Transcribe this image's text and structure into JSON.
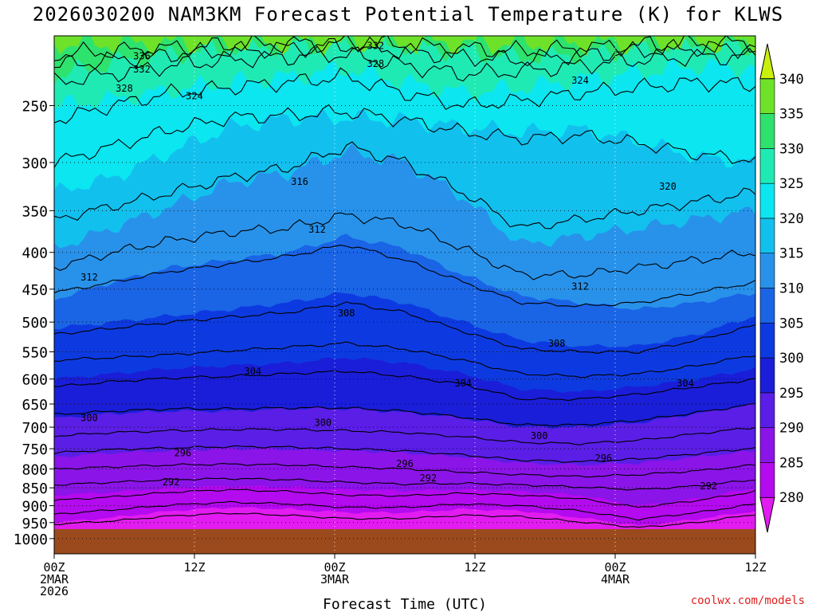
{
  "title": "2026030200 NAM3KM Forecast Potential Temperature (K) for KLWS",
  "watermark": "coolwx.com/models",
  "chart_data": {
    "type": "contour-filled time-height cross section",
    "title": "2026030200 NAM3KM Forecast Potential Temperature (K) for KLWS",
    "xlabel": "Forecast Time (UTC)",
    "ylabel": "",
    "x_ticks": [
      {
        "hour": 0,
        "lines": [
          "00Z",
          "2MAR",
          "2026"
        ]
      },
      {
        "hour": 12,
        "lines": [
          "12Z"
        ]
      },
      {
        "hour": 24,
        "lines": [
          "00Z",
          "3MAR"
        ]
      },
      {
        "hour": 36,
        "lines": [
          "12Z"
        ]
      },
      {
        "hour": 48,
        "lines": [
          "00Z",
          "4MAR"
        ]
      },
      {
        "hour": 60,
        "lines": [
          "12Z"
        ]
      }
    ],
    "xlim": [
      0,
      60
    ],
    "y_ticks": [
      250,
      300,
      350,
      400,
      450,
      500,
      550,
      600,
      650,
      700,
      750,
      800,
      850,
      900,
      950,
      1000
    ],
    "ylim": [
      200,
      1050
    ],
    "y_scale": "log-pressure",
    "ground_pressure": 970,
    "grid": true,
    "colorbar": {
      "labels": [
        340,
        335,
        330,
        325,
        320,
        315,
        310,
        305,
        300,
        295,
        290,
        285,
        280
      ],
      "levels": [
        {
          "min": 275,
          "max": 280,
          "color": "#e21cf0"
        },
        {
          "min": 280,
          "max": 285,
          "color": "#b40aef"
        },
        {
          "min": 285,
          "max": 290,
          "color": "#8b14e8"
        },
        {
          "min": 290,
          "max": 295,
          "color": "#5a1ee6"
        },
        {
          "min": 295,
          "max": 300,
          "color": "#1a1ed8"
        },
        {
          "min": 300,
          "max": 305,
          "color": "#0d3ae0"
        },
        {
          "min": 305,
          "max": 310,
          "color": "#1a64e6"
        },
        {
          "min": 310,
          "max": 315,
          "color": "#2892ea"
        },
        {
          "min": 315,
          "max": 320,
          "color": "#12c0ee"
        },
        {
          "min": 320,
          "max": 325,
          "color": "#0be6f0"
        },
        {
          "min": 325,
          "max": 330,
          "color": "#20eab4"
        },
        {
          "min": 330,
          "max": 335,
          "color": "#2ee26e"
        },
        {
          "min": 335,
          "max": 340,
          "color": "#6ee228"
        },
        {
          "min": 340,
          "max": 345,
          "color": "#c8f00c"
        }
      ]
    },
    "isentrope_labels": [
      {
        "value": 336,
        "hour": 7.5,
        "p": 213
      },
      {
        "value": 332,
        "hour": 7.5,
        "p": 222
      },
      {
        "value": 328,
        "hour": 6,
        "p": 236
      },
      {
        "value": 324,
        "hour": 12,
        "p": 242
      },
      {
        "value": 332,
        "hour": 27.5,
        "p": 206
      },
      {
        "value": 328,
        "hour": 27.5,
        "p": 218
      },
      {
        "value": 324,
        "hour": 45,
        "p": 230
      },
      {
        "value": 320,
        "hour": 52.5,
        "p": 323
      },
      {
        "value": 316,
        "hour": 21,
        "p": 318
      },
      {
        "value": 312,
        "hour": 22.5,
        "p": 371
      },
      {
        "value": 312,
        "hour": 3,
        "p": 432
      },
      {
        "value": 312,
        "hour": 45,
        "p": 445
      },
      {
        "value": 308,
        "hour": 25,
        "p": 485
      },
      {
        "value": 308,
        "hour": 43,
        "p": 534
      },
      {
        "value": 304,
        "hour": 17,
        "p": 584
      },
      {
        "value": 304,
        "hour": 35,
        "p": 607
      },
      {
        "value": 304,
        "hour": 54,
        "p": 607
      },
      {
        "value": 300,
        "hour": 3,
        "p": 678
      },
      {
        "value": 300,
        "hour": 23,
        "p": 688
      },
      {
        "value": 300,
        "hour": 41.5,
        "p": 718
      },
      {
        "value": 296,
        "hour": 11,
        "p": 758
      },
      {
        "value": 296,
        "hour": 30,
        "p": 785
      },
      {
        "value": 296,
        "hour": 47,
        "p": 771
      },
      {
        "value": 292,
        "hour": 10,
        "p": 832
      },
      {
        "value": 292,
        "hour": 32,
        "p": 822
      },
      {
        "value": 292,
        "hour": 56,
        "p": 843
      }
    ],
    "boundaries": [
      {
        "upper": 340,
        "p": [
          205,
          205,
          205,
          205,
          205,
          205,
          205,
          205,
          205,
          205,
          205,
          205,
          205
        ]
      },
      {
        "upper": 335,
        "p": [
          228,
          218,
          212,
          208,
          206,
          204,
          206,
          210,
          214,
          212,
          208,
          206,
          206
        ]
      },
      {
        "upper": 330,
        "p": [
          250,
          245,
          238,
          232,
          228,
          222,
          232,
          240,
          236,
          230,
          225,
          220,
          222
        ]
      },
      {
        "upper": 325,
        "p": [
          330,
          315,
          290,
          268,
          260,
          260,
          262,
          268,
          272,
          270,
          280,
          295,
          300
        ]
      },
      {
        "upper": 320,
        "p": [
          395,
          370,
          345,
          320,
          310,
          290,
          300,
          335,
          390,
          380,
          370,
          360,
          350
        ]
      },
      {
        "upper": 315,
        "p": [
          465,
          440,
          420,
          410,
          400,
          380,
          395,
          430,
          460,
          470,
          480,
          470,
          455
        ]
      },
      {
        "upper": 310,
        "p": [
          510,
          500,
          490,
          480,
          470,
          455,
          470,
          500,
          530,
          540,
          540,
          520,
          490
        ]
      },
      {
        "upper": 305,
        "p": [
          600,
          590,
          580,
          575,
          570,
          560,
          570,
          590,
          620,
          625,
          615,
          600,
          580
        ]
      },
      {
        "upper": 300,
        "p": [
          680,
          670,
          665,
          665,
          660,
          660,
          668,
          680,
          700,
          700,
          690,
          670,
          650
        ]
      },
      {
        "upper": 295,
        "p": [
          770,
          760,
          755,
          750,
          752,
          755,
          760,
          770,
          785,
          790,
          785,
          770,
          755
        ]
      },
      {
        "upper": 290,
        "p": [
          870,
          862,
          850,
          845,
          848,
          855,
          858,
          855,
          860,
          870,
          900,
          880,
          850
        ]
      },
      {
        "upper": 285,
        "p": [
          950,
          935,
          915,
          905,
          910,
          920,
          920,
          910,
          915,
          935,
          960,
          940,
          915
        ]
      },
      {
        "upper": 280,
        "p": [
          990,
          985,
          970,
          960,
          965,
          975,
          975,
          965,
          970,
          985,
          995,
          985,
          970
        ]
      }
    ],
    "lowest_color": "#e21cf0",
    "contours": [
      {
        "p": [
          212,
          210,
          208,
          206,
          205,
          205,
          206,
          208,
          210,
          208,
          206,
          205,
          205
        ]
      },
      {
        "p": [
          220,
          216,
          212,
          210,
          208,
          206,
          210,
          214,
          216,
          212,
          210,
          208,
          208
        ]
      },
      {
        "p": [
          232,
          226,
          220,
          216,
          214,
          212,
          220,
          226,
          224,
          220,
          216,
          214,
          214
        ]
      },
      {
        "p": [
          262,
          250,
          240,
          236,
          232,
          228,
          240,
          250,
          246,
          240,
          236,
          232,
          234
        ]
      },
      {
        "p": [
          300,
          285,
          270,
          260,
          258,
          255,
          262,
          272,
          278,
          275,
          282,
          292,
          298
        ]
      },
      {
        "p": [
          360,
          345,
          330,
          315,
          305,
          285,
          300,
          330,
          370,
          360,
          350,
          340,
          330
        ]
      },
      {
        "p": [
          420,
          400,
          385,
          375,
          370,
          355,
          365,
          395,
          430,
          430,
          420,
          410,
          400
        ]
      },
      {
        "p": [
          455,
          440,
          425,
          415,
          405,
          390,
          410,
          440,
          470,
          475,
          470,
          455,
          440
        ]
      },
      {
        "p": [
          520,
          510,
          500,
          492,
          485,
          470,
          485,
          515,
          545,
          550,
          550,
          530,
          505
        ]
      },
      {
        "p": [
          565,
          560,
          555,
          548,
          542,
          535,
          545,
          565,
          590,
          595,
          590,
          575,
          555
        ]
      },
      {
        "p": [
          615,
          605,
          598,
          595,
          590,
          585,
          595,
          610,
          640,
          640,
          630,
          615,
          600
        ]
      },
      {
        "p": [
          672,
          665,
          660,
          660,
          658,
          658,
          665,
          678,
          695,
          695,
          685,
          668,
          650
        ]
      },
      {
        "p": [
          720,
          712,
          708,
          705,
          705,
          708,
          712,
          722,
          735,
          738,
          730,
          715,
          700
        ]
      },
      {
        "p": [
          760,
          752,
          748,
          745,
          746,
          750,
          755,
          765,
          778,
          782,
          775,
          762,
          748
        ]
      },
      {
        "p": [
          800,
          795,
          790,
          788,
          790,
          795,
          800,
          808,
          815,
          820,
          815,
          805,
          790
        ]
      },
      {
        "p": [
          842,
          835,
          828,
          825,
          828,
          835,
          840,
          838,
          842,
          848,
          855,
          845,
          828
        ]
      },
      {
        "p": [
          885,
          875,
          862,
          855,
          860,
          870,
          872,
          865,
          870,
          880,
          905,
          885,
          860
        ]
      },
      {
        "p": [
          925,
          912,
          898,
          890,
          895,
          905,
          905,
          895,
          900,
          915,
          940,
          920,
          895
        ]
      },
      {
        "p": [
          955,
          945,
          930,
          922,
          928,
          938,
          938,
          928,
          932,
          948,
          965,
          950,
          925
        ]
      }
    ]
  }
}
